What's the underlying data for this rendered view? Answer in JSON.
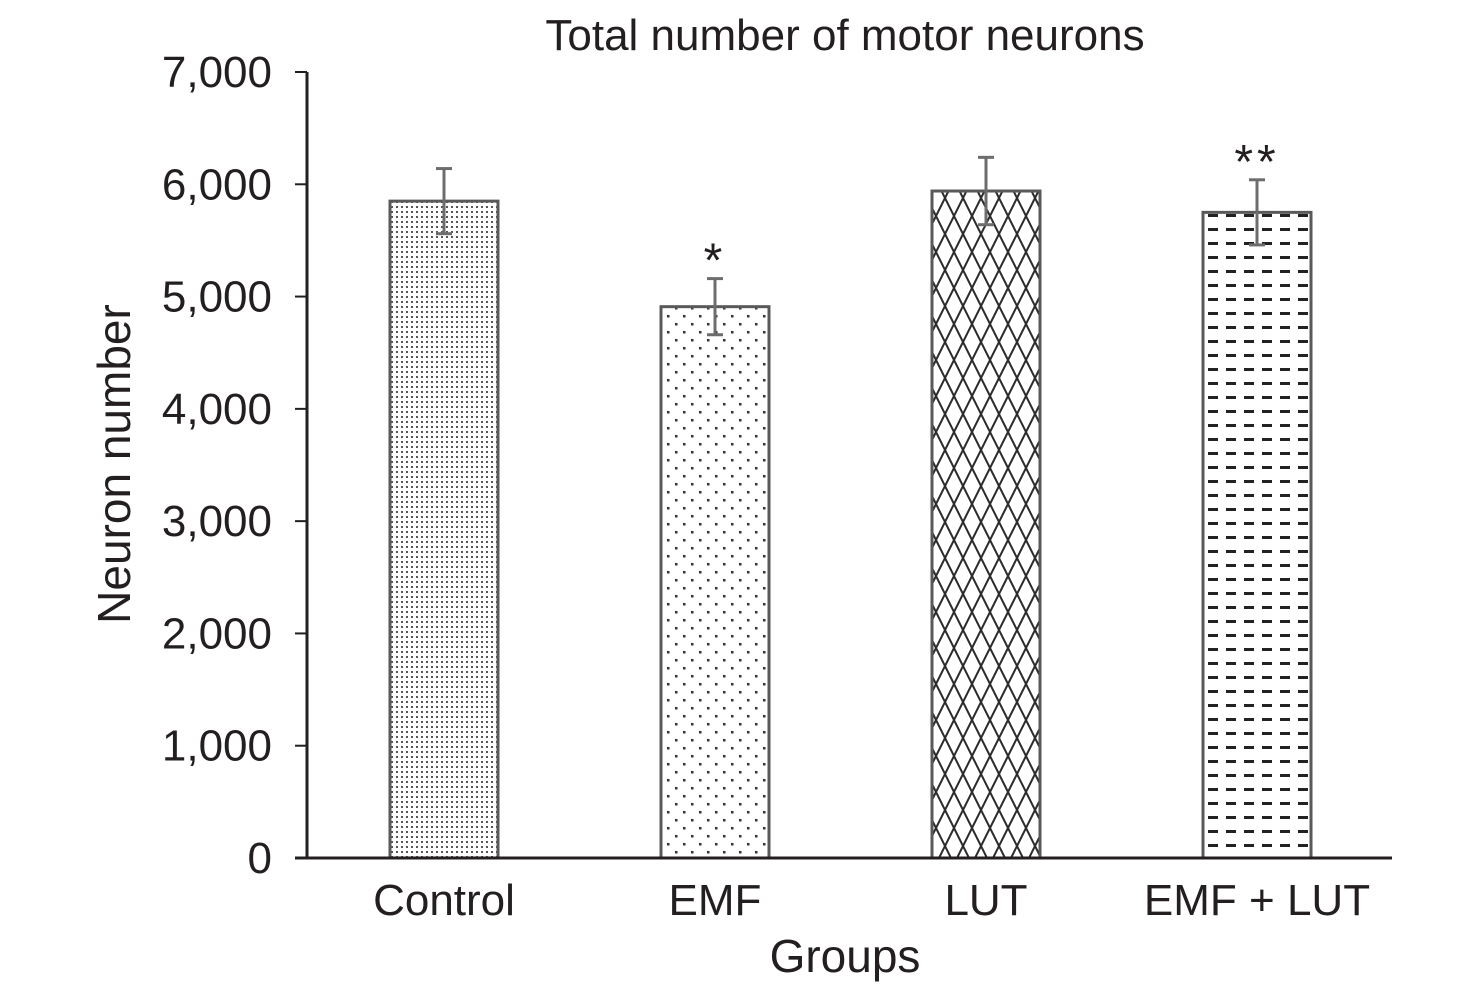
{
  "chart_data": {
    "type": "bar",
    "title": "Total number of motor neurons",
    "xlabel": "Groups",
    "ylabel": "Neuron number",
    "ylim": [
      0,
      7000
    ],
    "yticks": [
      0,
      1000,
      2000,
      3000,
      4000,
      5000,
      6000,
      7000
    ],
    "ytick_labels": [
      "0",
      "1,000",
      "2,000",
      "3,000",
      "4,000",
      "5,000",
      "6,000",
      "7,000"
    ],
    "categories": [
      "Control",
      "EMF",
      "LUT",
      "EMF + LUT"
    ],
    "values": [
      5850,
      4910,
      5940,
      5750
    ],
    "errors": [
      290,
      250,
      300,
      290
    ],
    "annotations": [
      "",
      "*",
      "",
      "**"
    ],
    "patterns": [
      "fine-dots",
      "sparse-dots",
      "crosshatch",
      "dashes"
    ],
    "grid": false,
    "legend": "none"
  }
}
